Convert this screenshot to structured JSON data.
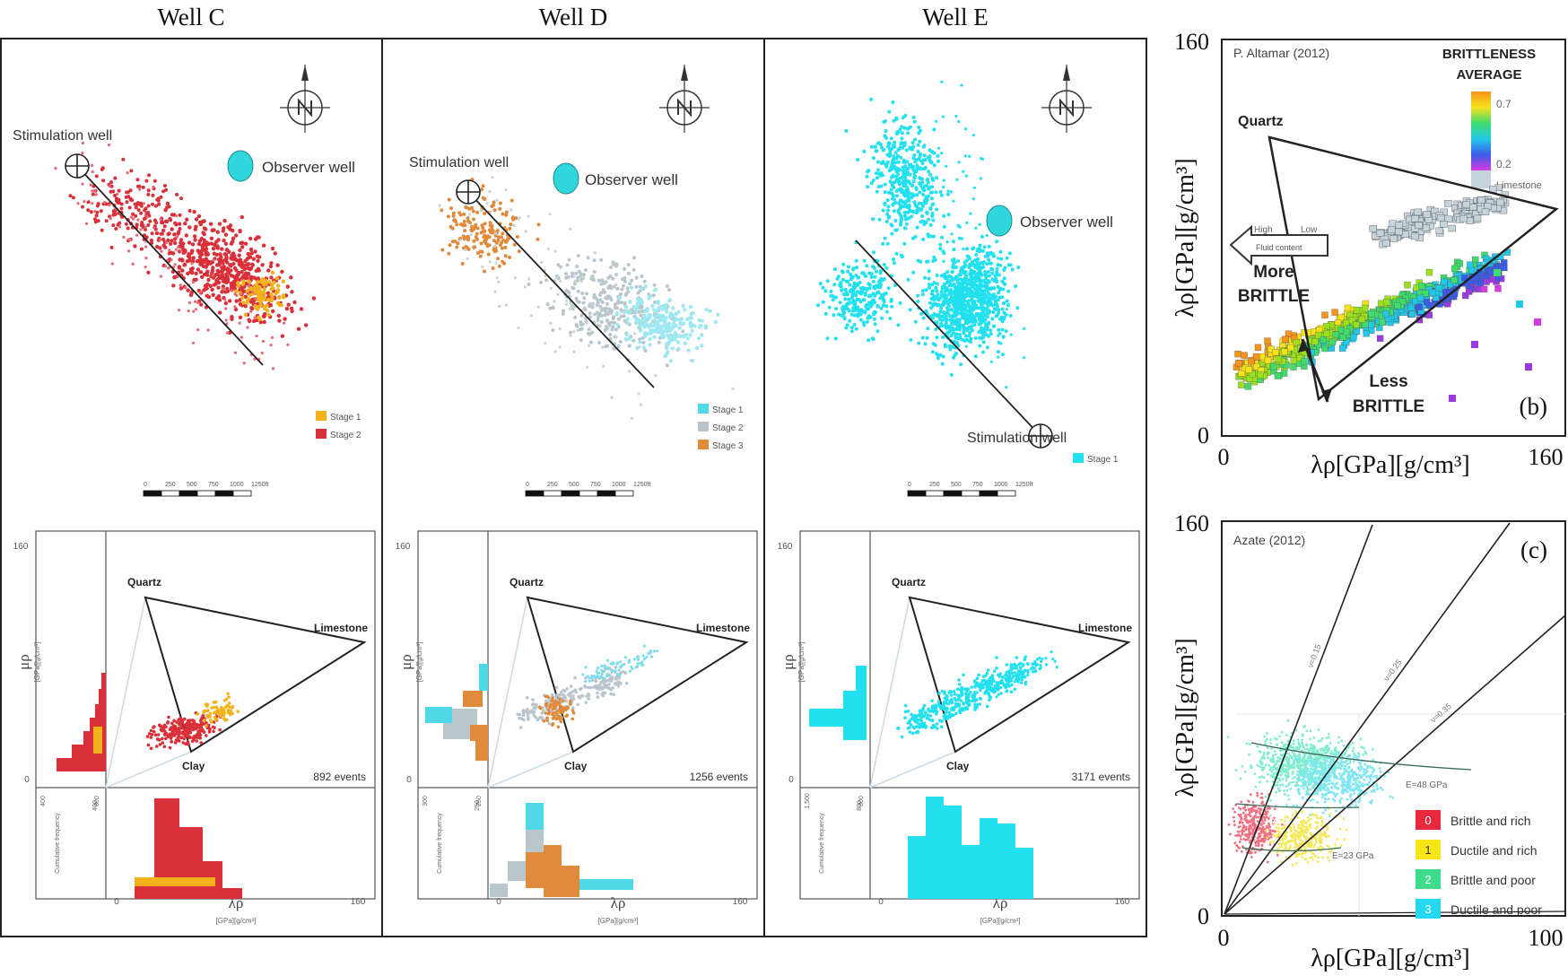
{
  "wells": [
    {
      "title": "Well C",
      "map": {
        "stimulation_label": "Stimulation well",
        "observer_label": "Observer well",
        "legend": [
          {
            "label": "Stage 1",
            "color": "#f2b21c"
          },
          {
            "label": "Stage 2",
            "color": "#d9303a"
          }
        ],
        "scale_labels": [
          "0",
          "250",
          "500",
          "750",
          "1000",
          "1250ft"
        ]
      },
      "crossplot": {
        "y_top": "160",
        "y_zero": "0",
        "y_label": "μρ",
        "y_unit": "[GPa][g/cm³]",
        "x_zero": "0",
        "x_max": "160",
        "x_label": "λρ",
        "x_unit": "[GPa][g/cm³]",
        "quartz": "Quartz",
        "limestone": "Limestone",
        "clay": "Clay",
        "events": "892 events",
        "hist_left_ticks": [
          "400",
          "800"
        ],
        "hist_bottom_ticks": [
          "400"
        ],
        "cum_label": "Cumulative frequency"
      }
    },
    {
      "title": "Well D",
      "map": {
        "stimulation_label": "Stimulation well",
        "observer_label": "Observer well",
        "legend": [
          {
            "label": "Stage 1",
            "color": "#4fd9e6"
          },
          {
            "label": "Stage 2",
            "color": "#b9c6cc"
          },
          {
            "label": "Stage 3",
            "color": "#e08a3c"
          }
        ],
        "scale_labels": [
          "0",
          "250",
          "500",
          "750",
          "1000",
          "1250ft"
        ]
      },
      "crossplot": {
        "y_top": "160",
        "y_zero": "0",
        "y_label": "μρ",
        "y_unit": "[GPa][g/cm³]",
        "x_zero": "0",
        "x_max": "160",
        "x_label": "λρ",
        "x_unit": "[GPa][g/cm³]",
        "quartz": "Quartz",
        "limestone": "Limestone",
        "clay": "Clay",
        "events": "1256 events",
        "hist_left_ticks": [
          "300",
          "250"
        ],
        "hist_bottom_ticks": [
          "250"
        ],
        "cum_label": "Cumulative frequency"
      }
    },
    {
      "title": "Well E",
      "map": {
        "stimulation_label": "Stimulation well",
        "observer_label": "Observer well",
        "legend": [
          {
            "label": "Stage 1",
            "color": "#22e0ee"
          }
        ],
        "scale_labels": [
          "0",
          "250",
          "500",
          "750",
          "1000",
          "1250ft"
        ]
      },
      "crossplot": {
        "y_top": "160",
        "y_zero": "0",
        "y_label": "μρ",
        "y_unit": "[GPa][g/cm³]",
        "x_zero": "0",
        "x_max": "160",
        "x_label": "λρ",
        "x_unit": "[GPa][g/cm³]",
        "quartz": "Quartz",
        "limestone": "Limestone",
        "clay": "Clay",
        "events": "3171 events",
        "hist_left_ticks": [
          "1,500",
          "800"
        ],
        "hist_bottom_ticks": [
          "800"
        ],
        "cum_label": "Cumulative frequency"
      }
    }
  ],
  "panel_b": {
    "tag": "(b)",
    "credit": "P. Altamar (2012)",
    "y_top": "160",
    "y_zero": "0",
    "x_zero": "0",
    "x_max": "160",
    "y_label": "λρ[GPa][g/cm³]",
    "x_label": "λρ[GPa][g/cm³]",
    "legend_title_1": "BRITTLENESS",
    "legend_title_2": "AVERAGE",
    "legend_high": "0.7",
    "legend_low": "0.2",
    "legend_lime": "Limestone",
    "quartz": "Quartz",
    "arrow_high": "High",
    "arrow_low": "Low",
    "arrow_text": "Fluid content",
    "more_1": "More",
    "more_2": "BRITTLE",
    "less_1": "Less",
    "less_2": "BRITTLE"
  },
  "panel_c": {
    "tag": "(c)",
    "credit": "Azate (2012)",
    "y_top": "160",
    "y_zero": "0",
    "x_zero": "0",
    "x_max": "100",
    "y_label": "λρ[GPa][g/cm³]",
    "x_label": "λρ[GPa][g/cm³]",
    "line_labels": [
      "ν=0.15",
      "ν=0.25",
      "ν=0.35"
    ],
    "e_labels": [
      "E=48 GPa",
      "E=23 GPa"
    ],
    "zone_numbers": [
      "0",
      "1",
      "2",
      "3"
    ],
    "legend": [
      {
        "num": "0",
        "label": "Brittle and rich",
        "color": "#e8283c"
      },
      {
        "num": "1",
        "label": "Ductile and rich",
        "color": "#f5e51a"
      },
      {
        "num": "2",
        "label": "Brittle and poor",
        "color": "#3fdc8c"
      },
      {
        "num": "3",
        "label": "Ductile and poor",
        "color": "#25d8f0"
      }
    ]
  },
  "chart_data": [
    {
      "type": "scatter",
      "title": "Well C",
      "xlabel": "λρ [GPa][g/cm³]",
      "ylabel": "μρ [GPa][g/cm³]",
      "xlim": [
        0,
        160
      ],
      "ylim": [
        0,
        160
      ],
      "series": [
        {
          "name": "Stage 1",
          "color": "#f2b21c"
        },
        {
          "name": "Stage 2",
          "color": "#d9303a"
        }
      ],
      "annotation": "892 events"
    },
    {
      "type": "scatter",
      "title": "Well D",
      "xlabel": "λρ [GPa][g/cm³]",
      "ylabel": "μρ [GPa][g/cm³]",
      "xlim": [
        0,
        160
      ],
      "ylim": [
        0,
        160
      ],
      "series": [
        {
          "name": "Stage 1",
          "color": "#4fd9e6"
        },
        {
          "name": "Stage 2",
          "color": "#b9c6cc"
        },
        {
          "name": "Stage 3",
          "color": "#e08a3c"
        }
      ],
      "annotation": "1256 events"
    },
    {
      "type": "scatter",
      "title": "Well E",
      "xlabel": "λρ [GPa][g/cm³]",
      "ylabel": "μρ [GPa][g/cm³]",
      "xlim": [
        0,
        160
      ],
      "ylim": [
        0,
        160
      ],
      "series": [
        {
          "name": "Stage 1",
          "color": "#22e0ee"
        }
      ],
      "annotation": "3171 events"
    },
    {
      "type": "scatter",
      "title": "P. Altamar (2012)",
      "xlabel": "λρ[GPa][g/cm³]",
      "ylabel": "λρ[GPa][g/cm³]",
      "xlim": [
        0,
        160
      ],
      "ylim": [
        0,
        160
      ],
      "colorscale": {
        "name": "BRITTLENESS AVERAGE",
        "min": 0.2,
        "max": 0.7
      }
    },
    {
      "type": "scatter",
      "title": "Azate (2012)",
      "xlabel": "λρ[GPa][g/cm³]",
      "ylabel": "λρ[GPa][g/cm³]",
      "xlim": [
        0,
        100
      ],
      "ylim": [
        0,
        160
      ],
      "poisson_lines": [
        0.15,
        0.25,
        0.35
      ],
      "youngs_contours_gpa": [
        23,
        48
      ],
      "zones": [
        "Brittle and rich",
        "Ductile and rich",
        "Brittle and poor",
        "Ductile and poor"
      ]
    }
  ]
}
